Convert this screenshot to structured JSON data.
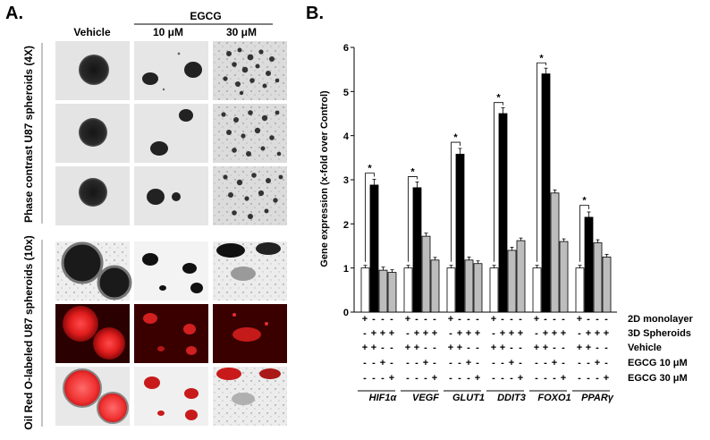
{
  "panel_a": {
    "letter": "A.",
    "treatment_group": "EGCG",
    "columns": [
      "Vehicle",
      "10 μM",
      "30 μM"
    ],
    "section_labels": [
      "Phase contrast U87 spheroids (4X)",
      "Oil Red O-labeled U87 spheroids (10x)"
    ]
  },
  "panel_b": {
    "letter": "B."
  },
  "chart_data": {
    "type": "bar",
    "ylabel": "Gene expression (x-fold over Control)",
    "ylim": [
      0,
      6
    ],
    "yticks": [
      0,
      1,
      2,
      3,
      4,
      5,
      6
    ],
    "categories": [
      "HIF1α",
      "VEGF",
      "GLUT1",
      "DDIT3",
      "FOXO1",
      "PPARγ"
    ],
    "series": [
      {
        "name": "2D monolayer + Vehicle",
        "color": "#ffffff",
        "values": [
          1.0,
          1.0,
          1.0,
          1.0,
          1.0,
          1.0
        ],
        "errors": [
          0.06,
          0.06,
          0.06,
          0.06,
          0.06,
          0.06
        ]
      },
      {
        "name": "3D Spheroids + Vehicle",
        "color": "#000000",
        "values": [
          2.88,
          2.82,
          3.58,
          4.5,
          5.4,
          2.15
        ],
        "errors": [
          0.13,
          0.13,
          0.13,
          0.13,
          0.13,
          0.12
        ]
      },
      {
        "name": "3D Spheroids + EGCG 10 μM",
        "color": "#bdbdbd",
        "values": [
          0.95,
          1.72,
          1.18,
          1.4,
          2.7,
          1.57
        ],
        "errors": [
          0.07,
          0.07,
          0.07,
          0.07,
          0.07,
          0.07
        ]
      },
      {
        "name": "3D Spheroids + EGCG 30 μM",
        "color": "#bdbdbd",
        "values": [
          0.9,
          1.18,
          1.1,
          1.62,
          1.6,
          1.25
        ],
        "errors": [
          0.06,
          0.06,
          0.06,
          0.06,
          0.06,
          0.06
        ]
      }
    ],
    "significance_brackets": [
      {
        "category": "HIF1α",
        "top": 3.15,
        "label": "*"
      },
      {
        "category": "VEGF",
        "top": 3.07,
        "label": "*"
      },
      {
        "category": "GLUT1",
        "top": 3.85,
        "label": "*"
      },
      {
        "category": "DDIT3",
        "top": 4.75,
        "label": "*"
      },
      {
        "category": "FOXO1",
        "top": 5.65,
        "label": "*"
      },
      {
        "category": "PPARγ",
        "top": 2.42,
        "label": "*"
      }
    ],
    "condition_rows": [
      {
        "label": "2D monolayer",
        "signs": [
          "+",
          "-",
          "-",
          "-"
        ]
      },
      {
        "label": "3D Spheroids",
        "signs": [
          "-",
          "+",
          "+",
          "+"
        ]
      },
      {
        "label": "Vehicle",
        "signs": [
          "+",
          "+",
          "-",
          "-"
        ]
      },
      {
        "label": "EGCG 10 μM",
        "signs": [
          "-",
          "-",
          "+",
          "-"
        ]
      },
      {
        "label": "EGCG 30 μM",
        "signs": [
          "-",
          "-",
          "-",
          "+"
        ]
      }
    ]
  }
}
